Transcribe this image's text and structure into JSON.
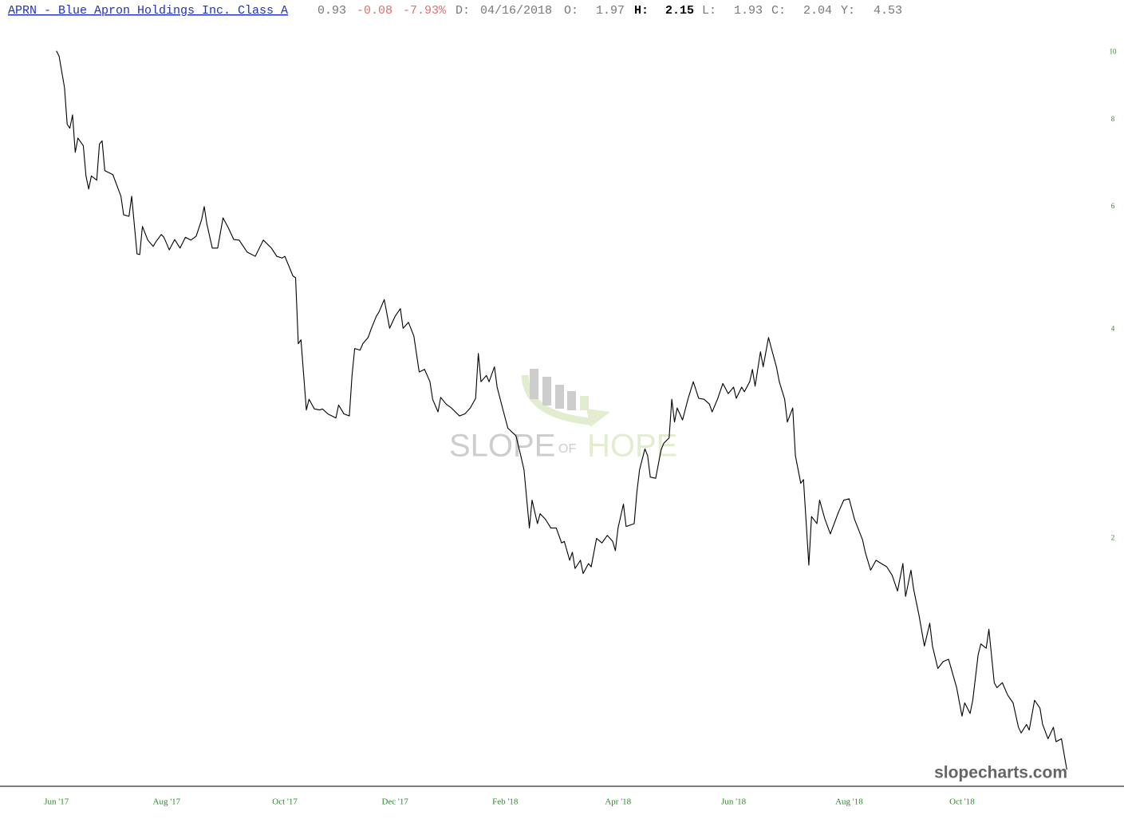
{
  "header": {
    "symbol": "APRN - Blue Apron Holdings Inc. Class A",
    "last": "0.93",
    "change": "-0.08",
    "change_pct": "-7.93%",
    "date_label": "D:",
    "date": "04/16/2018",
    "open_label": "O:",
    "open": "1.97",
    "high_label": "H:",
    "high": "2.15",
    "low_label": "L:",
    "low": "1.93",
    "close_label": "C:",
    "close": "2.04",
    "prev_label": "Y:",
    "prev": "4.53"
  },
  "watermark": {
    "word1": "SLOPE",
    "word2": "OF",
    "word3": "HOPE",
    "site": "slopecharts.com"
  },
  "chart_data": {
    "type": "line",
    "log_scale": true,
    "grid": false,
    "x": [
      0,
      1,
      3,
      4,
      5,
      6,
      7,
      8,
      10,
      11,
      12,
      13,
      15,
      16,
      17,
      18,
      21,
      24,
      25,
      27,
      28,
      30,
      31,
      32,
      34,
      36,
      37,
      39,
      40,
      42,
      44,
      46,
      48,
      50,
      52,
      54,
      55,
      56,
      58,
      60,
      62,
      64,
      66,
      68,
      71,
      74,
      77,
      80,
      82,
      84,
      85,
      88,
      89,
      90,
      91,
      93,
      94,
      95,
      96,
      98,
      99,
      101,
      104,
      105,
      107,
      109,
      110,
      111,
      113,
      114,
      116,
      117,
      119,
      120,
      122,
      124,
      126,
      128,
      129,
      131,
      133,
      135,
      137,
      139,
      140,
      142,
      143,
      145,
      147,
      150,
      152,
      154,
      156,
      157,
      158,
      160,
      161,
      163,
      164,
      166,
      168,
      171,
      173,
      174,
      176,
      177,
      179,
      180,
      182,
      184,
      186,
      188,
      189,
      191,
      192,
      193,
      195,
      196,
      198,
      199,
      201,
      203,
      205,
      207,
      208,
      209,
      211,
      212,
      215,
      216,
      217,
      219,
      220,
      221,
      223,
      225,
      226,
      228,
      229,
      230,
      231,
      233,
      235,
      237,
      239,
      241,
      243,
      244,
      246,
      248,
      250,
      252,
      253,
      255,
      256,
      258,
      259,
      260,
      262,
      263,
      265,
      266,
      268,
      269,
      271,
      272,
      274,
      275,
      277,
      278,
      280,
      281,
      283,
      284,
      286,
      288,
      291,
      293,
      295,
      297,
      300,
      301,
      303,
      305,
      307,
      309,
      311,
      313,
      315,
      316,
      318,
      319,
      321,
      323,
      325,
      326,
      328,
      330,
      332,
      335,
      337,
      338,
      340,
      341,
      343,
      344,
      346,
      347,
      349,
      350,
      352,
      354,
      356,
      358,
      359,
      361,
      362,
      364,
      366,
      367,
      369,
      371,
      372,
      374,
      376
    ],
    "series": [
      {
        "color": "#000000",
        "values": [
          10.05,
          9.87,
          8.9,
          7.88,
          7.78,
          8.13,
          7.18,
          7.53,
          7.34,
          6.64,
          6.36,
          6.64,
          6.55,
          7.38,
          7.46,
          6.76,
          6.67,
          6.21,
          5.84,
          5.81,
          6.21,
          5.13,
          5.12,
          5.62,
          5.37,
          5.26,
          5.34,
          5.47,
          5.42,
          5.2,
          5.38,
          5.23,
          5.42,
          5.37,
          5.44,
          5.74,
          6.0,
          5.66,
          5.23,
          5.23,
          5.78,
          5.59,
          5.38,
          5.37,
          5.16,
          5.09,
          5.37,
          5.23,
          5.09,
          5.06,
          5.09,
          4.77,
          4.74,
          3.81,
          3.86,
          3.06,
          3.17,
          3.12,
          3.07,
          3.06,
          3.07,
          3.02,
          2.98,
          3.11,
          3.02,
          3.0,
          3.43,
          3.75,
          3.73,
          3.81,
          3.89,
          3.99,
          4.17,
          4.23,
          4.41,
          4.01,
          4.17,
          4.28,
          4.01,
          4.09,
          3.91,
          3.47,
          3.5,
          3.36,
          3.17,
          3.04,
          3.19,
          3.12,
          3.08,
          3.0,
          3.02,
          3.08,
          3.18,
          3.69,
          3.36,
          3.43,
          3.36,
          3.53,
          3.3,
          3.08,
          2.88,
          2.81,
          2.61,
          2.51,
          2.07,
          2.27,
          2.1,
          2.17,
          2.13,
          2.07,
          2.07,
          1.97,
          1.98,
          1.86,
          1.91,
          1.81,
          1.86,
          1.78,
          1.84,
          1.82,
          2.0,
          1.97,
          2.02,
          1.98,
          1.92,
          2.07,
          2.24,
          2.08,
          2.1,
          2.33,
          2.51,
          2.69,
          2.63,
          2.45,
          2.44,
          2.68,
          2.74,
          2.79,
          3.17,
          2.94,
          3.08,
          2.96,
          3.17,
          3.36,
          3.18,
          3.17,
          3.12,
          3.04,
          3.17,
          3.34,
          3.23,
          3.3,
          3.18,
          3.3,
          3.25,
          3.36,
          3.5,
          3.31,
          3.71,
          3.53,
          3.89,
          3.76,
          3.52,
          3.36,
          3.17,
          2.94,
          3.08,
          2.63,
          2.4,
          2.43,
          1.83,
          2.15,
          2.1,
          2.27,
          2.13,
          2.03,
          2.18,
          2.27,
          2.28,
          2.13,
          1.99,
          1.91,
          1.8,
          1.86,
          1.84,
          1.82,
          1.77,
          1.68,
          1.84,
          1.65,
          1.8,
          1.69,
          1.55,
          1.4,
          1.51,
          1.4,
          1.3,
          1.33,
          1.34,
          1.22,
          1.11,
          1.16,
          1.12,
          1.17,
          1.36,
          1.41,
          1.39,
          1.48,
          1.24,
          1.22,
          1.24,
          1.19,
          1.16,
          1.07,
          1.05,
          1.08,
          1.06,
          1.17,
          1.14,
          1.08,
          1.03,
          1.07,
          1.02,
          1.03,
          0.93
        ]
      }
    ],
    "xlim": [
      -21,
      386
    ],
    "xticks": [
      {
        "value": 0,
        "label": "Jun '17"
      },
      {
        "value": 41,
        "label": "Aug '17"
      },
      {
        "value": 85,
        "label": "Oct '17"
      },
      {
        "value": 126,
        "label": "Dec '17"
      },
      {
        "value": 167,
        "label": "Feb '18"
      },
      {
        "value": 209,
        "label": "Apr '18"
      },
      {
        "value": 252,
        "label": "Jun '18"
      },
      {
        "value": 295,
        "label": "Aug '18"
      },
      {
        "value": 337,
        "label": "Oct '18"
      }
    ],
    "ylim": [
      0.88,
      10.7
    ],
    "yticks": [
      10,
      8,
      6,
      4,
      2
    ]
  }
}
